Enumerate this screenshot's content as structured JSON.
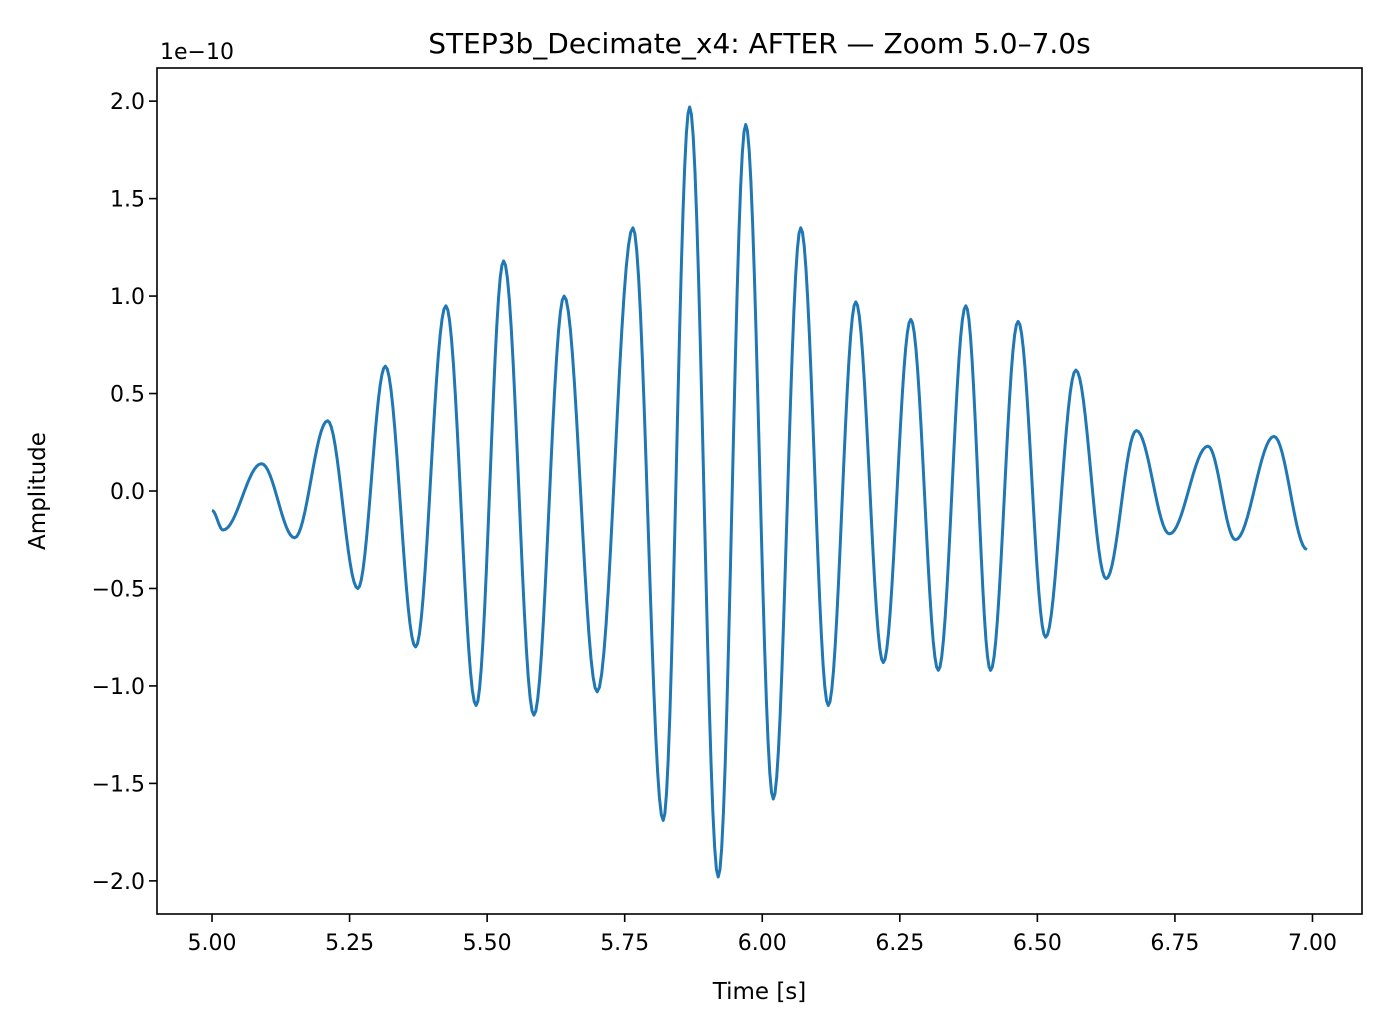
{
  "chart_data": {
    "type": "line",
    "title": "STEP3b_Decimate_x4: AFTER — Zoom 5.0–7.0s",
    "xlabel": "Time [s]",
    "ylabel": "Amplitude",
    "offset_label": "1e−10",
    "xlim": [
      4.9,
      7.09
    ],
    "ylim": [
      -2.17,
      2.17
    ],
    "xticks": [
      5.0,
      5.25,
      5.5,
      5.75,
      6.0,
      6.25,
      6.5,
      6.75,
      7.0
    ],
    "xtick_labels": [
      "5.00",
      "5.25",
      "5.50",
      "5.75",
      "6.00",
      "6.25",
      "6.50",
      "6.75",
      "7.00"
    ],
    "yticks": [
      2.0,
      1.5,
      1.0,
      0.5,
      0.0,
      -0.5,
      -1.0,
      -1.5,
      -2.0
    ],
    "ytick_labels": [
      "2.0",
      "1.5",
      "1.0",
      "0.5",
      "0.0",
      "−0.5",
      "−1.0",
      "−1.5",
      "−2.0"
    ],
    "series": [
      {
        "name": "signal",
        "color": "#1f77b4",
        "extrema": [
          [
            5.0,
            -0.1
          ],
          [
            5.02,
            -0.2
          ],
          [
            5.09,
            0.14
          ],
          [
            5.15,
            -0.24
          ],
          [
            5.21,
            0.36
          ],
          [
            5.265,
            -0.5
          ],
          [
            5.315,
            0.64
          ],
          [
            5.37,
            -0.8
          ],
          [
            5.425,
            0.95
          ],
          [
            5.48,
            -1.1
          ],
          [
            5.53,
            1.18
          ],
          [
            5.585,
            -1.15
          ],
          [
            5.64,
            1.0
          ],
          [
            5.7,
            -1.03
          ],
          [
            5.765,
            1.35
          ],
          [
            5.82,
            -1.69
          ],
          [
            5.868,
            1.97
          ],
          [
            5.92,
            -1.98
          ],
          [
            5.97,
            1.88
          ],
          [
            6.02,
            -1.58
          ],
          [
            6.07,
            1.35
          ],
          [
            6.12,
            -1.1
          ],
          [
            6.17,
            0.97
          ],
          [
            6.22,
            -0.88
          ],
          [
            6.27,
            0.88
          ],
          [
            6.32,
            -0.92
          ],
          [
            6.37,
            0.95
          ],
          [
            6.415,
            -0.92
          ],
          [
            6.465,
            0.87
          ],
          [
            6.515,
            -0.75
          ],
          [
            6.57,
            0.62
          ],
          [
            6.625,
            -0.45
          ],
          [
            6.68,
            0.31
          ],
          [
            6.74,
            -0.22
          ],
          [
            6.81,
            0.23
          ],
          [
            6.86,
            -0.25
          ],
          [
            6.93,
            0.28
          ],
          [
            6.99,
            -0.3
          ]
        ]
      }
    ]
  }
}
